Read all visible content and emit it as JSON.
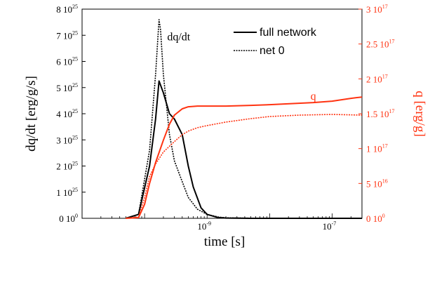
{
  "chart_data": {
    "type": "line",
    "x_scale": "log",
    "xlim": [
      1e-11,
      3e-07
    ],
    "x_tick_labels": [
      "10-9",
      "10-7"
    ],
    "x_tick_values": [
      1e-09,
      1e-07
    ],
    "xlabel": "time [s]",
    "ylabel_left": "dq/dt [erg/g/s]",
    "ylabel_right": "q [erg/g]",
    "ylim_left": [
      0,
      8e+25
    ],
    "ylim_right": [
      0,
      3e+17
    ],
    "left_ticks": [
      {
        "value": 0,
        "label": "0 10",
        "exp": "0"
      },
      {
        "value": 1e+25,
        "label": "1 10",
        "exp": "25"
      },
      {
        "value": 2e+25,
        "label": "2 10",
        "exp": "25"
      },
      {
        "value": 3e+25,
        "label": "3 10",
        "exp": "25"
      },
      {
        "value": 4e+25,
        "label": "4 10",
        "exp": "25"
      },
      {
        "value": 5e+25,
        "label": "5 10",
        "exp": "25"
      },
      {
        "value": 6e+25,
        "label": "6 10",
        "exp": "25"
      },
      {
        "value": 7e+25,
        "label": "7 10",
        "exp": "25"
      },
      {
        "value": 8e+25,
        "label": "8 10",
        "exp": "25"
      }
    ],
    "right_ticks": [
      {
        "value": 0,
        "label": "0 10",
        "exp": "0"
      },
      {
        "value": 5e+16,
        "label": "5 10",
        "exp": "16"
      },
      {
        "value": 1e+17,
        "label": "1 10",
        "exp": "17"
      },
      {
        "value": 1.5e+17,
        "label": "1.5 10",
        "exp": "17"
      },
      {
        "value": 2e+17,
        "label": "2 10",
        "exp": "17"
      },
      {
        "value": 2.5e+17,
        "label": "2.5 10",
        "exp": "17"
      },
      {
        "value": 3e+17,
        "label": "3 10",
        "exp": "17"
      }
    ],
    "legend": {
      "placement": "top-right",
      "entries": [
        {
          "label": "full network",
          "style": "solid"
        },
        {
          "label": "net 0",
          "style": "dotted"
        }
      ]
    },
    "annotations": [
      {
        "text": "dq/dt",
        "x": 2.3e-10,
        "y": 6.8e+25,
        "axis": "left"
      },
      {
        "text": "q",
        "x": 4.5e-08,
        "y": 1.7e+17,
        "axis": "right"
      }
    ],
    "series": [
      {
        "label": "dq/dt full network",
        "axis": "left",
        "style": "solid",
        "color": "#000000",
        "x": [
          5e-11,
          8e-11,
          1.2e-10,
          1.5e-10,
          1.7e-10,
          2e-10,
          2.5e-10,
          3e-10,
          4e-10,
          5e-10,
          6e-10,
          8e-10,
          1e-09,
          1.5e-09,
          2e-09,
          5e-09,
          1e-08,
          1e-07,
          3e-07
        ],
        "y": [
          0,
          1.5e+24,
          2e+25,
          3.8e+25,
          5.25e+25,
          4.8e+25,
          4e+25,
          3.8e+25,
          3.2e+25,
          2e+25,
          1.2e+25,
          4e+24,
          1.5e+24,
          3e+23,
          1e+23,
          0,
          0,
          0,
          0
        ]
      },
      {
        "label": "dq/dt net 0",
        "axis": "left",
        "style": "dotted",
        "color": "#000000",
        "x": [
          5e-11,
          8e-11,
          1.2e-10,
          1.5e-10,
          1.7e-10,
          1.8e-10,
          2e-10,
          2.5e-10,
          3e-10,
          4e-10,
          5e-10,
          7e-10,
          1e-09,
          1.5e-09,
          2e-09,
          5e-09,
          1e-08,
          1e-07,
          3e-07
        ],
        "y": [
          0,
          1.5e+24,
          2.6e+25,
          5.5e+25,
          7.6e+25,
          7.2e+25,
          5.5e+25,
          3.2e+25,
          2.2e+25,
          1.4e+25,
          8e+24,
          3.5e+24,
          1.5e+24,
          5e+23,
          2e+23,
          5e+22,
          0,
          0,
          0
        ]
      },
      {
        "label": "q full network",
        "axis": "right",
        "style": "solid",
        "color": "#ff3311",
        "x": [
          5e-11,
          8e-11,
          1e-10,
          1.2e-10,
          1.5e-10,
          2e-10,
          2.5e-10,
          3e-10,
          4e-10,
          5e-10,
          7e-10,
          1e-09,
          2e-09,
          5e-09,
          1e-08,
          5e-08,
          1e-07,
          2e-07,
          3e-07
        ],
        "y": [
          0,
          1000000000000000.0,
          2e+16,
          5e+16,
          8e+16,
          1.12e+17,
          1.35e+17,
          1.48e+17,
          1.57e+17,
          1.6e+17,
          1.61e+17,
          1.61e+17,
          1.61e+17,
          1.62e+17,
          1.63e+17,
          1.66e+17,
          1.68e+17,
          1.72e+17,
          1.74e+17
        ]
      },
      {
        "label": "q net 0",
        "axis": "right",
        "style": "dotted",
        "color": "#ff3311",
        "x": [
          5e-11,
          8e-11,
          1e-10,
          1.2e-10,
          1.5e-10,
          2e-10,
          3e-10,
          4e-10,
          5e-10,
          7e-10,
          1e-09,
          2e-09,
          5e-09,
          1e-08,
          3e-08,
          1e-07,
          3e-07
        ],
        "y": [
          0,
          2000000000000000.0,
          3e+16,
          6e+16,
          7.8e+16,
          9.5e+16,
          1.1e+17,
          1.2e+17,
          1.25e+17,
          1.3e+17,
          1.33e+17,
          1.38e+17,
          1.43e+17,
          1.46e+17,
          1.48e+17,
          1.49e+17,
          1.48e+17
        ]
      }
    ]
  }
}
